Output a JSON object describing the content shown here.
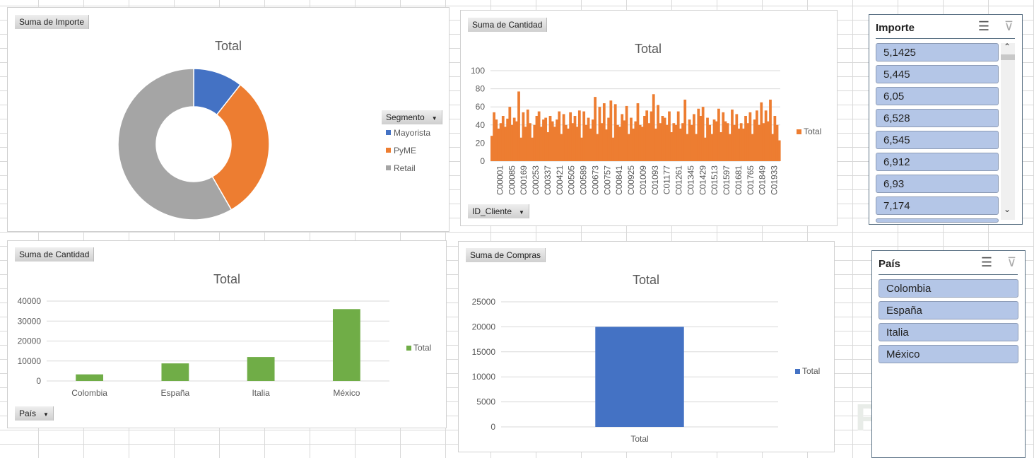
{
  "watermark": "Platzi",
  "colors": {
    "blue": "#4472c4",
    "orange": "#ed7d31",
    "gray": "#a5a5a5",
    "green": "#70ad47"
  },
  "slicers": [
    {
      "title": "Importe",
      "items": [
        "5,1425",
        "5,445",
        "6,05",
        "6,528",
        "6,545",
        "6,912",
        "6,93",
        "7,174"
      ]
    },
    {
      "title": "País",
      "items": [
        "Colombia",
        "España",
        "Italia",
        "México"
      ]
    }
  ],
  "chart_data": [
    {
      "type": "pie",
      "donut": true,
      "field_button": "Suma de Importe",
      "title": "Total",
      "legend_title": "Segmento",
      "legend_position": "right",
      "categories": [
        "Mayorista",
        "PyME",
        "Retail"
      ],
      "values": [
        10.6,
        31.1,
        58.3
      ]
    },
    {
      "type": "bar",
      "field_button": "Suma de Cantidad",
      "title": "Total",
      "axis_button": "ID_Cliente",
      "legend": [
        "Total"
      ],
      "legend_position": "right",
      "ylim": [
        0,
        100
      ],
      "yticks": [
        0,
        20,
        40,
        60,
        80,
        100
      ],
      "grid": true,
      "tick_labels": [
        "C00001",
        "C00085",
        "C00169",
        "C00253",
        "C00337",
        "C00421",
        "C00505",
        "C00589",
        "C00673",
        "C00757",
        "C00841",
        "C00925",
        "C01009",
        "C01093",
        "C01177",
        "C01261",
        "C01345",
        "C01429",
        "C01513",
        "C01597",
        "C01681",
        "C01765",
        "C01849",
        "C01933"
      ],
      "values": [
        28,
        54,
        46,
        36,
        42,
        50,
        38,
        47,
        60,
        40,
        48,
        44,
        77,
        26,
        54,
        38,
        57,
        42,
        26,
        40,
        50,
        55,
        38,
        46,
        48,
        32,
        50,
        44,
        38,
        46,
        55,
        30,
        52,
        40,
        36,
        54,
        42,
        50,
        38,
        56,
        26,
        55,
        40,
        48,
        36,
        46,
        71,
        30,
        60,
        42,
        64,
        35,
        48,
        67,
        26,
        63,
        40,
        38,
        52,
        45,
        61,
        30,
        48,
        36,
        44,
        64,
        40,
        38,
        50,
        56,
        42,
        55,
        74,
        36,
        62,
        42,
        50,
        48,
        40,
        55,
        32,
        42,
        40,
        55,
        36,
        42,
        68,
        30,
        46,
        40,
        52,
        30,
        58,
        50,
        60,
        26,
        48,
        40,
        30,
        46,
        44,
        58,
        32,
        54,
        44,
        42,
        30,
        57,
        40,
        52,
        36,
        42,
        36,
        50,
        42,
        54,
        30,
        46,
        56,
        40,
        65,
        42,
        56,
        44,
        68,
        30,
        50,
        40,
        23
      ]
    },
    {
      "type": "bar",
      "field_button": "Suma de Cantidad",
      "title": "Total",
      "axis_button": "País",
      "legend": [
        "Total"
      ],
      "legend_position": "right",
      "ylim": [
        0,
        40000
      ],
      "yticks": [
        0,
        10000,
        20000,
        30000,
        40000
      ],
      "grid": true,
      "categories": [
        "Colombia",
        "España",
        "Italia",
        "México"
      ],
      "values": [
        3300,
        8800,
        12000,
        36000
      ]
    },
    {
      "type": "bar",
      "field_button": "Suma de Compras",
      "title": "Total",
      "legend": [
        "Total"
      ],
      "legend_position": "right",
      "ylim": [
        0,
        25000
      ],
      "yticks": [
        0,
        5000,
        10000,
        15000,
        20000,
        25000
      ],
      "grid": true,
      "categories": [
        "Total"
      ],
      "values": [
        20000
      ]
    }
  ]
}
